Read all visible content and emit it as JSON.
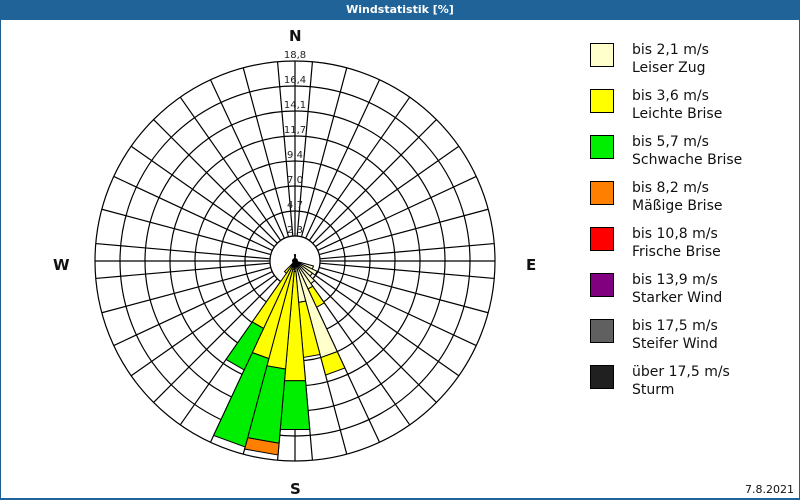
{
  "window": {
    "title": "Windstatistik [%]"
  },
  "compass": {
    "n": "N",
    "e": "E",
    "s": "S",
    "w": "W"
  },
  "footer": {
    "date": "7.8.2021"
  },
  "legend": [
    {
      "range": "bis 2,1 m/s",
      "name": "Leiser Zug",
      "color": "#ffffcc"
    },
    {
      "range": "bis 3,6 m/s",
      "name": "Leichte Brise",
      "color": "#ffff00"
    },
    {
      "range": "bis 5,7 m/s",
      "name": "Schwache Brise",
      "color": "#00ee00"
    },
    {
      "range": "bis 8,2 m/s",
      "name": "Mäßige Brise",
      "color": "#ff8000"
    },
    {
      "range": "bis 10,8 m/s",
      "name": "Frische Brise",
      "color": "#ff0000"
    },
    {
      "range": "bis 13,9 m/s",
      "name": "Starker Wind",
      "color": "#800080"
    },
    {
      "range": "bis 17,5 m/s",
      "name": "Steifer Wind",
      "color": "#606060"
    },
    {
      "range": "über 17,5 m/s",
      "name": "Sturm",
      "color": "#202020"
    }
  ],
  "chart_data": {
    "type": "wind-rose",
    "title": "Windstatistik [%]",
    "radial_ticks": [
      2.3,
      4.7,
      7.0,
      9.4,
      11.7,
      14.1,
      16.4,
      18.8
    ],
    "radial_tick_labels": [
      "2,3",
      "4,7",
      "7,0",
      "9,4",
      "11,7",
      "14,1",
      "16,4",
      "18,8"
    ],
    "rmax": 18.8,
    "sector_width_deg": 10,
    "spokes": 36,
    "directions_labels": [
      "N",
      "E",
      "S",
      "W"
    ],
    "series_names": [
      "Leiser Zug",
      "Leichte Brise",
      "Schwache Brise",
      "Mäßige Brise",
      "Frische Brise",
      "Starker Wind",
      "Steifer Wind",
      "Sturm"
    ],
    "sectors": [
      {
        "dir": 0,
        "cumulative": [
          0.3,
          0.6,
          0.6,
          0.6
        ]
      },
      {
        "dir": 110,
        "cumulative": [
          1.8,
          1.8,
          1.8,
          1.8
        ]
      },
      {
        "dir": 120,
        "cumulative": [
          2.3,
          2.3,
          2.3,
          2.3
        ]
      },
      {
        "dir": 130,
        "cumulative": [
          2.0,
          2.0,
          2.0,
          2.0
        ]
      },
      {
        "dir": 140,
        "cumulative": [
          2.6,
          2.6,
          2.6,
          2.6
        ]
      },
      {
        "dir": 150,
        "cumulative": [
          2.9,
          4.8,
          4.8,
          4.8
        ]
      },
      {
        "dir": 160,
        "cumulative": [
          9.4,
          11.1,
          11.1,
          11.1
        ]
      },
      {
        "dir": 170,
        "cumulative": [
          3.9,
          9.1,
          9.1,
          9.1
        ]
      },
      {
        "dir": 180,
        "cumulative": [
          1.0,
          11.3,
          15.9,
          15.9
        ]
      },
      {
        "dir": 190,
        "cumulative": [
          0.8,
          10.2,
          17.2,
          18.3
        ]
      },
      {
        "dir": 200,
        "cumulative": [
          0.6,
          9.5,
          18.1,
          18.1
        ]
      },
      {
        "dir": 210,
        "cumulative": [
          0.5,
          7.0,
          11.3,
          11.3
        ]
      },
      {
        "dir": 220,
        "cumulative": [
          0.3,
          1.4,
          1.4,
          1.4
        ]
      }
    ],
    "legend_position": "right"
  }
}
